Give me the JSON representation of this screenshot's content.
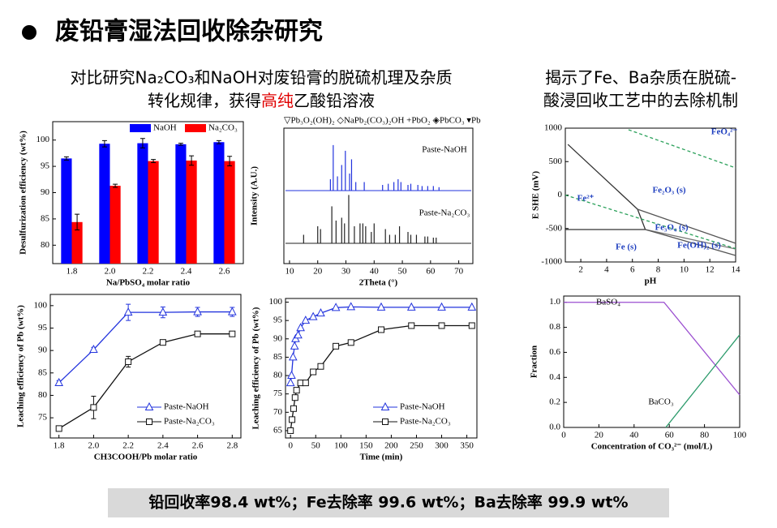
{
  "title": "废铅膏湿法回收除杂研究",
  "left_text": {
    "line1": "对比研究Na₂CO₃和NaOH对废铅膏的脱硫机理及杂质",
    "line2": [
      "转化规律，获得",
      "高纯",
      "乙酸铅溶液"
    ]
  },
  "right_text": [
    "揭示了Fe、Ba杂质在脱硫-",
    "酸浸回收工艺中的去除机制"
  ],
  "footer": "铅回收率98.4 wt%；Fe去除率 99.6 wt%；Ba去除率 99.9 wt%",
  "chart_data": [
    {
      "type": "bar",
      "ylabel": "Desulfurization efficiency (wt%)",
      "xlabel": "Na/PbSO₄ molar ratio",
      "categories": [
        "1.8",
        "2.0",
        "2.2",
        "2.4",
        "2.6"
      ],
      "ylim": [
        76.5,
        103.5
      ],
      "yticks": [
        80,
        85,
        90,
        95,
        100
      ],
      "legend": "upper right",
      "series": [
        {
          "name": "NaOH",
          "color": "#0000ff",
          "values": [
            96.5,
            99.3,
            99.4,
            99.2,
            99.6
          ],
          "errors": [
            0.3,
            0.6,
            0.9,
            0.2,
            0.3
          ]
        },
        {
          "name": "Na₂CO₃",
          "color": "#ff0000",
          "values": [
            84.4,
            91.3,
            96.0,
            96.1,
            96.0
          ],
          "errors": [
            1.5,
            0.3,
            0.3,
            0.9,
            0.9
          ]
        }
      ]
    },
    {
      "type": "stem",
      "legend_text": "▽Pb₃O₂(OH)₂ ◇NaPb₂(CO₃)₂OH +PbO₂ ◈PbCO₃ ▾Pb",
      "ylabel": "Intensity (A.U.)",
      "xlabel": "2Theta (°)",
      "xlim": [
        8,
        75
      ],
      "xticks": [
        10,
        20,
        30,
        40,
        50,
        60,
        70
      ],
      "ylim": [
        0,
        100
      ],
      "series": [
        {
          "name": "Paste-NaOH",
          "color": "#2233dd",
          "x": [
            24.5,
            25.5,
            27,
            28.5,
            29.8,
            31.3,
            32,
            33.5,
            36.5,
            43,
            45,
            47,
            48.5,
            49.5,
            52,
            53,
            55.5,
            57,
            59,
            61,
            63
          ],
          "values": [
            20,
            80,
            25,
            45,
            70,
            30,
            55,
            15,
            15,
            10,
            12,
            15,
            20,
            15,
            10,
            12,
            10,
            8,
            8,
            8,
            6
          ]
        },
        {
          "name": "Paste-Na₂CO₃",
          "color": "#222222",
          "x": [
            15,
            20,
            21,
            25,
            26.5,
            28.5,
            29.5,
            31,
            33,
            35,
            36,
            37,
            39,
            40,
            44,
            45.5,
            47.5,
            49,
            52,
            53,
            55,
            58,
            59,
            61,
            62
          ],
          "values": [
            15,
            30,
            25,
            65,
            40,
            45,
            35,
            85,
            30,
            35,
            35,
            30,
            20,
            35,
            25,
            15,
            15,
            30,
            20,
            15,
            15,
            12,
            12,
            10,
            10
          ]
        }
      ]
    },
    {
      "type": "line",
      "ylabel": "E SHE (mV)",
      "xlabel": "pH",
      "xlim": [
        0.8,
        14
      ],
      "xticks": [
        2,
        4,
        6,
        8,
        10,
        12,
        14
      ],
      "ylim": [
        -1000,
        1000
      ],
      "yticks": [
        -1000,
        -500,
        0,
        500,
        1000
      ],
      "annotations": [
        "FeO₄²⁻",
        "Fe²⁺",
        "Fe₂O₃ (s)",
        "Fe₃O₄ (s)",
        "Fe (s)",
        "Fe(OH)₂ (s)"
      ],
      "series": [
        {
          "color": "#333333",
          "x": [
            1.0,
            6.4,
            7.0
          ],
          "values": [
            757,
            -212,
            -515
          ]
        },
        {
          "color": "#333333",
          "x": [
            0.8,
            7.0
          ],
          "values": [
            -515,
            -515
          ]
        },
        {
          "color": "#555555",
          "x": [
            6.4,
            14
          ],
          "values": [
            -212,
            -721
          ]
        },
        {
          "color": "#777777",
          "x": [
            7.0,
            14
          ],
          "values": [
            -515,
            -806
          ]
        },
        {
          "color": "#555555",
          "x": [
            7.0,
            14
          ],
          "values": [
            -515,
            -903
          ]
        },
        {
          "color": "#2aa05a",
          "dash": true,
          "x": [
            5.7,
            14
          ],
          "values": [
            976,
            406
          ]
        },
        {
          "color": "#2aa05a",
          "dash": true,
          "x": [
            0.8,
            14
          ],
          "values": [
            0,
            -800
          ]
        }
      ]
    },
    {
      "type": "line",
      "ylabel": "Leaching efficiency of Pb (wt%)",
      "xlabel": "CH3COOH/Pb molar ratio",
      "legend": "lower right",
      "x": [
        1.8,
        2.0,
        2.2,
        2.4,
        2.6,
        2.8
      ],
      "xlim": [
        1.75,
        2.85
      ],
      "xticks": [
        1.8,
        {
          "value": 2,
          "label": "2.0"
        },
        2.2,
        2.4,
        2.6,
        2.8
      ],
      "ylim": [
        70.5,
        102.5
      ],
      "yticks": [
        75,
        80,
        85,
        90,
        95,
        100
      ],
      "series": [
        {
          "name": "Paste-NaOH",
          "color": "#2233dd",
          "marker": "triangle",
          "values": [
            82.8,
            90.2,
            98.5,
            98.5,
            98.6,
            98.6
          ],
          "errors": [
            0.5,
            0.5,
            1.8,
            1.2,
            1,
            1
          ]
        },
        {
          "name": "Paste-Na₂CO₃",
          "color": "#111111",
          "marker": "square",
          "values": [
            72.6,
            77.3,
            87.5,
            91.8,
            93.7,
            93.7
          ],
          "errors": [
            0.5,
            2.5,
            1.2,
            0.5,
            0.3,
            0.3
          ]
        }
      ]
    },
    {
      "type": "line",
      "ylabel": "Leaching efficiency of Pb (wt%)",
      "xlabel": "Time (min)",
      "legend": "lower right",
      "xlim": [
        -10,
        370
      ],
      "xticks": [
        0,
        50,
        100,
        150,
        200,
        250,
        300,
        350
      ],
      "ylim": [
        63,
        101
      ],
      "yticks": [
        65,
        70,
        75,
        80,
        85,
        90,
        95,
        100
      ],
      "series": [
        {
          "name": "Paste-NaOH",
          "color": "#2233dd",
          "marker": "triangle",
          "x": [
            0,
            2,
            5,
            8,
            10,
            15,
            20,
            30,
            45,
            60,
            90,
            120,
            180,
            240,
            300,
            360
          ],
          "values": [
            78,
            80,
            85,
            88,
            90,
            91,
            93,
            95,
            96,
            97,
            98.5,
            98.7,
            98.6,
            98.6,
            98.6,
            98.6
          ]
        },
        {
          "name": "Paste-Na₂CO₃",
          "color": "#111111",
          "marker": "square",
          "x": [
            0,
            3,
            6,
            9,
            12,
            20,
            30,
            45,
            60,
            90,
            120,
            180,
            240,
            300,
            360
          ],
          "values": [
            65,
            68,
            71,
            74,
            76,
            78,
            78,
            81,
            82.5,
            88,
            89,
            92.5,
            93.6,
            93.6,
            93.6
          ]
        }
      ]
    },
    {
      "type": "line",
      "ylabel": "Fraction",
      "xlabel": "Concentration of CO₃²⁻ (mol/L)",
      "xlim": [
        0,
        100
      ],
      "xticks": [
        0,
        20,
        40,
        60,
        80,
        100
      ],
      "ylim": [
        0,
        1.05
      ],
      "yticks": [
        {
          "value": 0,
          "label": "0.0"
        },
        {
          "value": 0.2,
          "label": "0.2"
        },
        {
          "value": 0.4,
          "label": "0.4"
        },
        {
          "value": 0.6,
          "label": "0.6"
        },
        {
          "value": 0.8,
          "label": "0.8"
        },
        {
          "value": 1,
          "label": "1.0"
        }
      ],
      "series": [
        {
          "name": "BaSO₄",
          "color": "#9b4fd0",
          "x": [
            0,
            57,
            100
          ],
          "values": [
            1,
            1,
            0.26
          ]
        },
        {
          "name": "BaCO₃",
          "color": "#2a9a6a",
          "x": [
            58,
            100
          ],
          "values": [
            0,
            0.74
          ]
        }
      ]
    }
  ]
}
